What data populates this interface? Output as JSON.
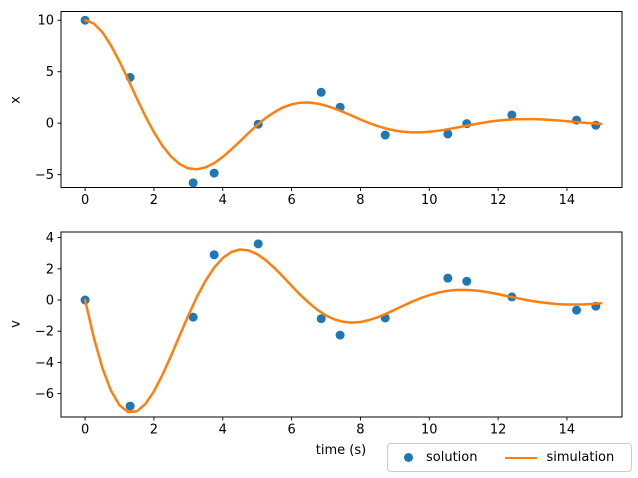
{
  "figure": {
    "background": "#ffffff",
    "xlabel": "time (s)",
    "legend": {
      "items": [
        {
          "label": "solution",
          "marker": "dot",
          "color": "#1f77b4"
        },
        {
          "label": "simulation",
          "marker": "line",
          "color": "#ff7f0e"
        }
      ]
    }
  },
  "chart_data": [
    {
      "type": "scatter",
      "title": "",
      "xlabel": "",
      "ylabel": "x",
      "xlim": [
        -0.7,
        15.6
      ],
      "ylim": [
        -6.25,
        10.85
      ],
      "xticks": [
        0,
        2,
        4,
        6,
        8,
        10,
        12,
        14
      ],
      "yticks": [
        10,
        5,
        0,
        -5
      ],
      "grid": false,
      "series": [
        {
          "name": "solution",
          "type": "scatter",
          "color": "#1f77b4",
          "t": [
            0.0,
            1.31,
            3.14,
            3.75,
            5.03,
            6.86,
            7.41,
            8.72,
            10.54,
            11.09,
            12.4,
            14.28,
            14.84
          ],
          "values": [
            10.0,
            4.45,
            -5.8,
            -4.85,
            -0.1,
            3.0,
            1.55,
            -1.15,
            -1.05,
            -0.05,
            0.8,
            0.3,
            -0.2
          ]
        },
        {
          "name": "simulation",
          "type": "line",
          "color": "#ff7f0e",
          "t_start": 0,
          "t_step": 0.25,
          "values": [
            10.0,
            9.69,
            8.85,
            7.57,
            5.99,
            4.24,
            2.44,
            0.7,
            -0.87,
            -2.21,
            -3.25,
            -3.98,
            -4.39,
            -4.48,
            -4.3,
            -3.88,
            -3.28,
            -2.55,
            -1.76,
            -0.95,
            -0.18,
            0.51,
            1.08,
            1.53,
            1.83,
            1.99,
            2.01,
            1.9,
            1.7,
            1.42,
            1.09,
            0.73,
            0.36,
            0.02,
            -0.28,
            -0.53,
            -0.71,
            -0.84,
            -0.9,
            -0.9,
            -0.84,
            -0.74,
            -0.61,
            -0.46,
            -0.3,
            -0.14,
            0.01,
            0.15,
            0.25,
            0.33,
            0.38,
            0.4,
            0.4,
            0.37,
            0.32,
            0.26,
            0.19,
            0.12,
            0.05,
            -0.02,
            -0.07
          ]
        }
      ]
    },
    {
      "type": "scatter",
      "title": "",
      "xlabel": "time (s)",
      "ylabel": "v",
      "xlim": [
        -0.7,
        15.6
      ],
      "ylim": [
        -7.5,
        4.36
      ],
      "xticks": [
        0,
        2,
        4,
        6,
        8,
        10,
        12,
        14
      ],
      "yticks": [
        4,
        2,
        0,
        -2,
        -4,
        -6
      ],
      "grid": false,
      "series": [
        {
          "name": "solution",
          "type": "scatter",
          "color": "#1f77b4",
          "t": [
            0.0,
            1.31,
            3.14,
            3.75,
            5.03,
            6.86,
            7.41,
            8.72,
            10.54,
            11.09,
            12.4,
            14.28,
            14.84
          ],
          "values": [
            0.0,
            -6.8,
            -1.1,
            2.9,
            3.6,
            -1.2,
            -2.25,
            -1.15,
            1.4,
            1.2,
            0.2,
            -0.65,
            -0.4
          ]
        },
        {
          "name": "simulation",
          "type": "line",
          "color": "#ff7f0e",
          "t_start": 0,
          "t_step": 0.25,
          "values": [
            0.0,
            -2.38,
            -4.34,
            -5.8,
            -6.75,
            -7.18,
            -7.14,
            -6.67,
            -5.86,
            -4.79,
            -3.57,
            -2.27,
            -0.99,
            0.2,
            1.24,
            2.08,
            2.7,
            3.08,
            3.24,
            3.18,
            2.94,
            2.55,
            2.06,
            1.5,
            0.91,
            0.34,
            -0.18,
            -0.63,
            -0.99,
            -1.25,
            -1.4,
            -1.45,
            -1.41,
            -1.29,
            -1.11,
            -0.88,
            -0.63,
            -0.36,
            -0.11,
            0.12,
            0.31,
            0.47,
            0.58,
            0.64,
            0.65,
            0.63,
            0.57,
            0.48,
            0.38,
            0.26,
            0.14,
            0.03,
            -0.07,
            -0.15,
            -0.22,
            -0.26,
            -0.29,
            -0.29,
            -0.28,
            -0.25,
            -0.21
          ]
        }
      ]
    }
  ]
}
